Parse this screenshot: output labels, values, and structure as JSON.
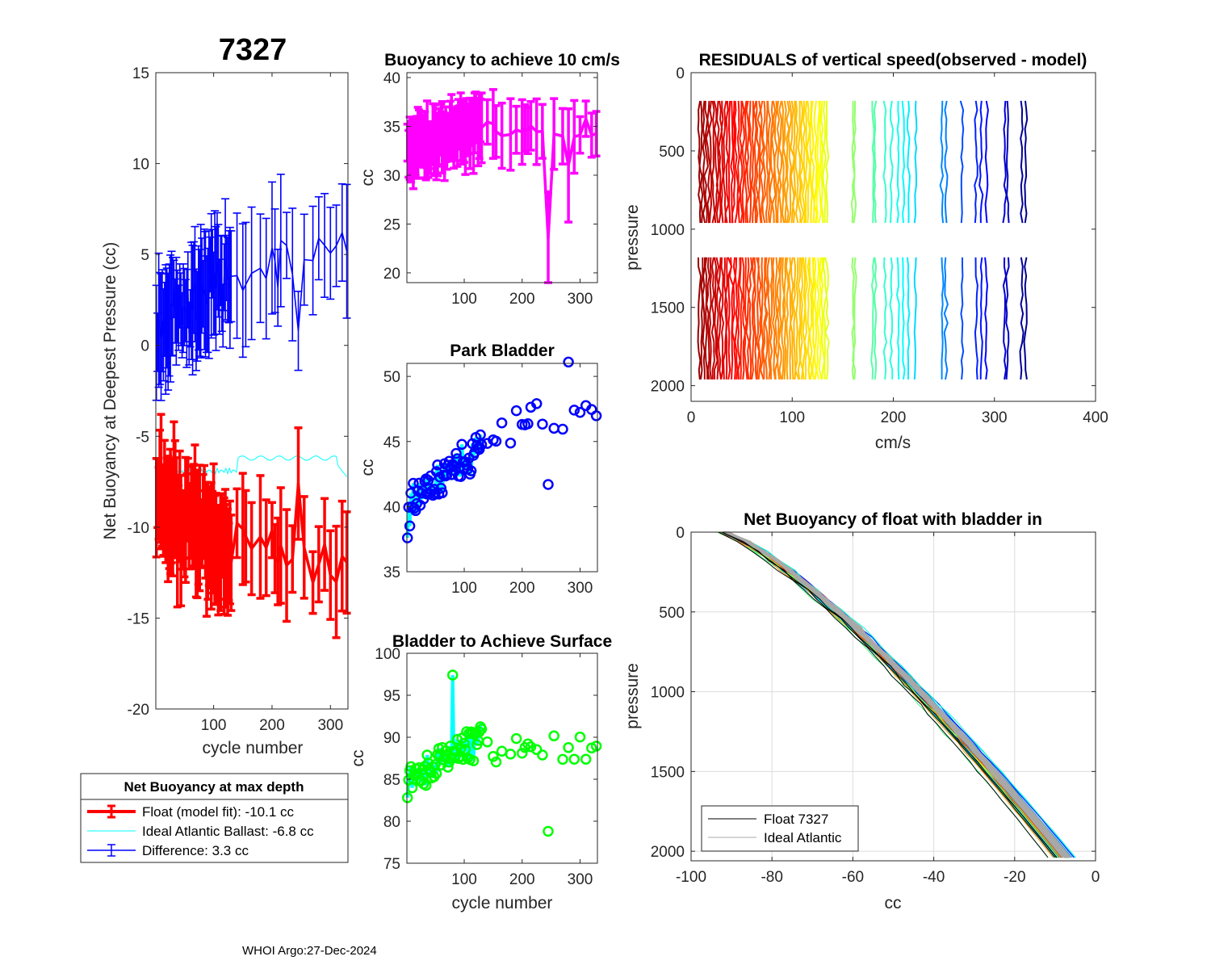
{
  "page": {
    "float_id": "7327",
    "footer": "WHOI Argo:27-Dec-2024"
  },
  "chart_data": [
    {
      "type": "line",
      "id": "net_buoyancy",
      "title": "7327",
      "xlabel": "cycle number",
      "ylabel": "Net Buoyancy at Deepest Pressure (cc)",
      "xlim": [
        1,
        330
      ],
      "ylim": [
        -20,
        15
      ],
      "xticks": [
        100,
        200,
        300
      ],
      "yticks": [
        15,
        10,
        5,
        0,
        -5,
        -10,
        -15,
        -20
      ],
      "series": [
        {
          "name": "Float (model fit): -10.1 cc",
          "color": "#ff0000",
          "style": "errorbar",
          "mean": -10.1
        },
        {
          "name": "Ideal Atlantic Ballast:  -6.8 cc",
          "color": "#00ffff",
          "style": "line",
          "mean": -6.8
        },
        {
          "name": "Difference:   3.3 cc",
          "color": "#0000ff",
          "style": "errorbar",
          "mean": 3.3
        }
      ],
      "legend": {
        "title": "Net Buoyancy at max depth",
        "entries": [
          "Float (model fit): -10.1 cc",
          "Ideal Atlantic Ballast:  -6.8 cc",
          "Difference:   3.3 cc"
        ],
        "placement": "below-plot"
      }
    },
    {
      "type": "scatter",
      "id": "buoyancy_10cms",
      "title": "Buoyancy to achieve 10 cm/s",
      "ylabel": "cc",
      "xlim": [
        1,
        330
      ],
      "ylim": [
        19,
        40.5
      ],
      "xticks": [
        100,
        200,
        300
      ],
      "yticks": [
        40,
        35,
        30,
        25,
        20
      ],
      "series": [
        {
          "name": "buoyancy",
          "color": "#ff00ff",
          "style": "errorbar"
        }
      ]
    },
    {
      "type": "scatter",
      "id": "park_bladder",
      "title": "Park Bladder",
      "ylabel": "cc",
      "xlim": [
        1,
        330
      ],
      "ylim": [
        35,
        51
      ],
      "xticks": [
        100,
        200,
        300
      ],
      "yticks": [
        50,
        45,
        40,
        35
      ],
      "series": [
        {
          "name": "park",
          "color": "#0000ff",
          "line_color": "#00ffff"
        }
      ]
    },
    {
      "type": "scatter",
      "id": "bladder_surface",
      "title": "Bladder to Achieve Surface",
      "xlabel": "cycle number",
      "ylabel": "cc",
      "xlim": [
        1,
        330
      ],
      "ylim": [
        75,
        100
      ],
      "xticks": [
        100,
        200,
        300
      ],
      "yticks": [
        100,
        95,
        90,
        85,
        80,
        75
      ],
      "series": [
        {
          "name": "surface",
          "color": "#00ff00",
          "line_color": "#00ffff"
        }
      ]
    },
    {
      "type": "line",
      "id": "residuals",
      "title": "RESIDUALS of vertical speed(observed - model)",
      "xlabel": "cm/s",
      "ylabel": "pressure",
      "xlim": [
        0,
        400
      ],
      "ylim": [
        2100,
        0
      ],
      "xticks": [
        0,
        100,
        200,
        300,
        400
      ],
      "yticks": [
        0,
        500,
        1000,
        1500,
        2000
      ],
      "profile_offsets": [
        8,
        30,
        55,
        80,
        100,
        120,
        140,
        160,
        180,
        200,
        210,
        220,
        250,
        270,
        285,
        310,
        330
      ]
    },
    {
      "type": "line",
      "id": "net_buoyancy_profile",
      "title": "Net Buoyancy of float with bladder in",
      "xlabel": "cc",
      "ylabel": "pressure",
      "xlim": [
        -100,
        0
      ],
      "ylim": [
        2060,
        0
      ],
      "xticks": [
        -100,
        -80,
        -60,
        -40,
        -20,
        0
      ],
      "yticks": [
        0,
        500,
        1000,
        1500,
        2000
      ],
      "grid": true,
      "legend": {
        "entries": [
          "Float 7327",
          "Ideal Atlantic"
        ],
        "placement": "bottom-left"
      }
    }
  ]
}
